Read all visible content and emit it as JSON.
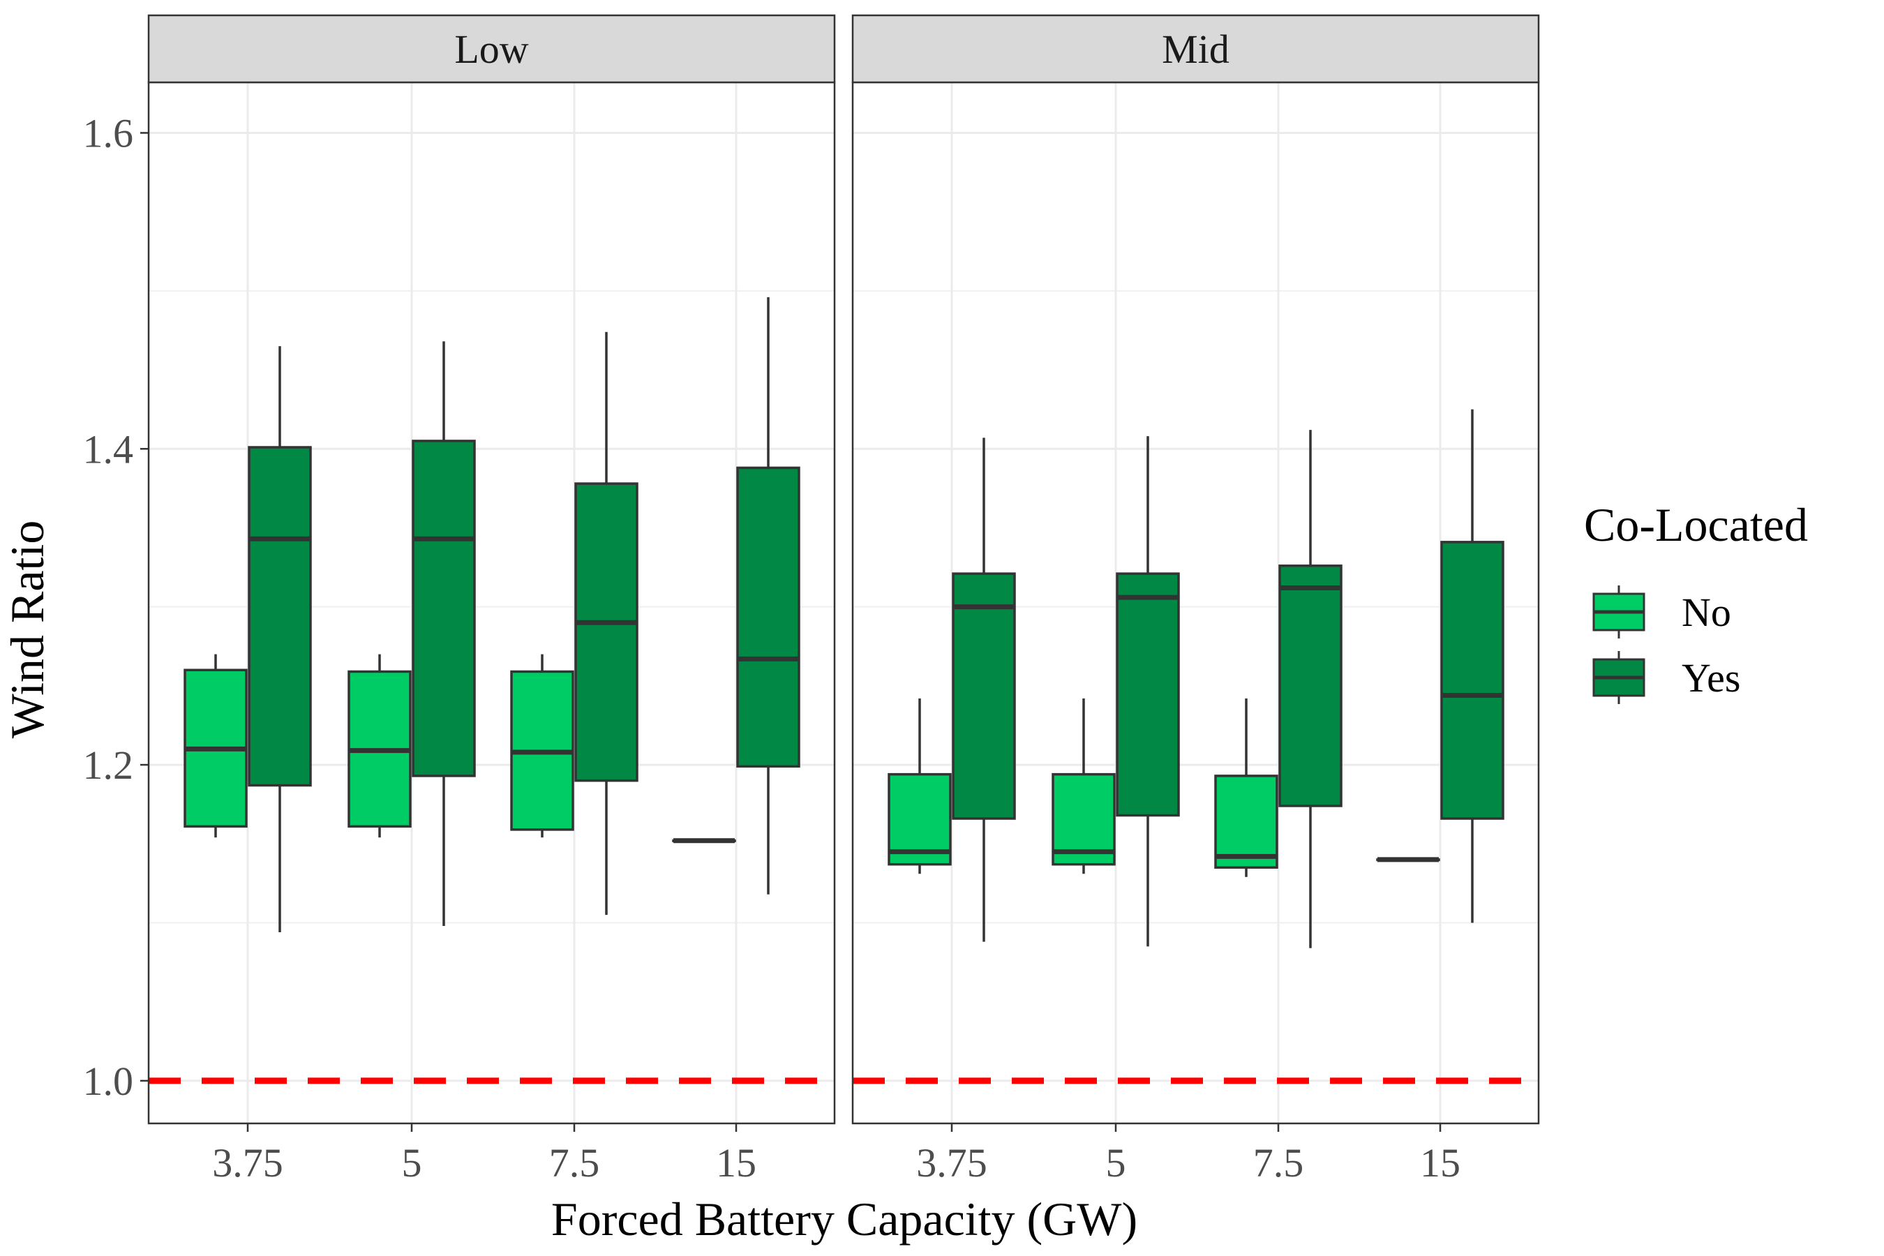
{
  "chart_data": {
    "type": "boxplot",
    "facets": [
      "Low",
      "Mid"
    ],
    "categories": [
      "3.75",
      "5",
      "7.5",
      "15"
    ],
    "xlabel": "Forced Battery Capacity (GW)",
    "ylabel": "Wind Ratio",
    "ylim": [
      0.973,
      1.632
    ],
    "yticks": [
      1.0,
      1.2,
      1.4,
      1.6
    ],
    "ytick_labels": [
      "1.0",
      "1.2",
      "1.4",
      "1.6"
    ],
    "reference_line": {
      "y": 1.0,
      "color": "#ff0000",
      "style": "dashed"
    },
    "legend": {
      "title": "Co-Located",
      "position": "right",
      "entries": [
        {
          "label": "No",
          "color": "#00cc66"
        },
        {
          "label": "Yes",
          "color": "#008844"
        }
      ]
    },
    "series": [
      {
        "name": "No",
        "color": "#00cc66",
        "boxes": {
          "Low": [
            {
              "min": 1.154,
              "q1": 1.161,
              "median": 1.21,
              "q3": 1.26,
              "max": 1.27
            },
            {
              "min": 1.154,
              "q1": 1.161,
              "median": 1.209,
              "q3": 1.259,
              "max": 1.27
            },
            {
              "min": 1.154,
              "q1": 1.159,
              "median": 1.208,
              "q3": 1.259,
              "max": 1.27
            },
            {
              "min": 1.152,
              "q1": 1.152,
              "median": 1.152,
              "q3": 1.152,
              "max": 1.152
            }
          ],
          "Mid": [
            {
              "min": 1.131,
              "q1": 1.137,
              "median": 1.145,
              "q3": 1.194,
              "max": 1.242
            },
            {
              "min": 1.131,
              "q1": 1.137,
              "median": 1.145,
              "q3": 1.194,
              "max": 1.242
            },
            {
              "min": 1.129,
              "q1": 1.135,
              "median": 1.142,
              "q3": 1.193,
              "max": 1.242
            },
            {
              "min": 1.14,
              "q1": 1.14,
              "median": 1.14,
              "q3": 1.14,
              "max": 1.14
            }
          ]
        }
      },
      {
        "name": "Yes",
        "color": "#008844",
        "boxes": {
          "Low": [
            {
              "min": 1.094,
              "q1": 1.187,
              "median": 1.343,
              "q3": 1.401,
              "max": 1.465
            },
            {
              "min": 1.098,
              "q1": 1.193,
              "median": 1.343,
              "q3": 1.405,
              "max": 1.468
            },
            {
              "min": 1.105,
              "q1": 1.19,
              "median": 1.29,
              "q3": 1.378,
              "max": 1.474
            },
            {
              "min": 1.118,
              "q1": 1.199,
              "median": 1.267,
              "q3": 1.388,
              "max": 1.496
            }
          ],
          "Mid": [
            {
              "min": 1.088,
              "q1": 1.166,
              "median": 1.3,
              "q3": 1.321,
              "max": 1.407
            },
            {
              "min": 1.085,
              "q1": 1.168,
              "median": 1.306,
              "q3": 1.321,
              "max": 1.408
            },
            {
              "min": 1.084,
              "q1": 1.174,
              "median": 1.312,
              "q3": 1.326,
              "max": 1.412
            },
            {
              "min": 1.1,
              "q1": 1.166,
              "median": 1.244,
              "q3": 1.341,
              "max": 1.425
            }
          ]
        }
      }
    ]
  }
}
